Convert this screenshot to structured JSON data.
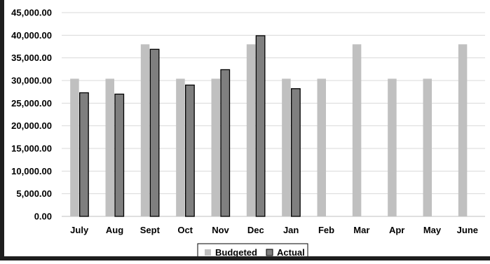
{
  "chart_data": {
    "type": "bar",
    "categories": [
      "July",
      "Aug",
      "Sept",
      "Oct",
      "Nov",
      "Dec",
      "Jan",
      "Feb",
      "Mar",
      "Apr",
      "May",
      "June"
    ],
    "series": [
      {
        "name": "Budgeted",
        "color": "#c0c0c0",
        "values": [
          30400,
          30400,
          38000,
          30400,
          30400,
          38000,
          30400,
          30400,
          38000,
          30400,
          30400,
          38000
        ]
      },
      {
        "name": "Actual",
        "color": "#7f7f7f",
        "values": [
          27300,
          27000,
          36900,
          29000,
          32400,
          39900,
          28200,
          null,
          null,
          null,
          null,
          null
        ]
      }
    ],
    "ylim": [
      0,
      45000
    ],
    "yticks": [
      "0.00",
      "5,000.00",
      "10,000.00",
      "15,000.00",
      "20,000.00",
      "25,000.00",
      "30,000.00",
      "35,000.00",
      "40,000.00",
      "45,000.00"
    ],
    "grid": true,
    "legend_position": "bottom"
  }
}
